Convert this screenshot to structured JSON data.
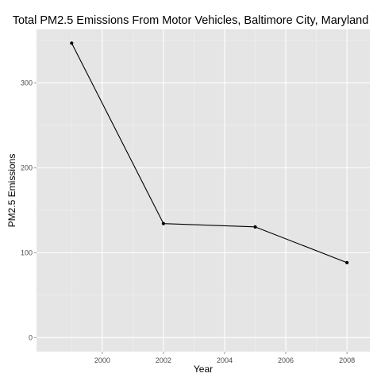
{
  "chart_data": {
    "type": "line",
    "title": "Total PM2.5 Emissions From Motor Vehicles, Baltimore City, Maryland",
    "xlabel": "Year",
    "ylabel": "PM2.5 Emissions",
    "x": [
      1999,
      2002,
      2005,
      2008
    ],
    "series": [
      {
        "values": [
          346.8,
          134.3,
          130.4,
          88.3
        ]
      }
    ],
    "xlim": [
      1997.85,
      2008.75
    ],
    "ylim": [
      -16.5,
      363
    ],
    "xticks": [
      2000,
      2002,
      2004,
      2006,
      2008
    ],
    "yticks": [
      0,
      100,
      200,
      300
    ],
    "xtick_labels": [
      "2000",
      "2002",
      "2004",
      "2006",
      "2008"
    ],
    "ytick_labels": [
      "0",
      "100",
      "200",
      "300"
    ],
    "grid": true,
    "legend": "none",
    "colors": {
      "panel_background": "#e5e5e5",
      "grid_major": "#ffffff",
      "grid_minor": "#f2f2f2",
      "line": "#000000",
      "point": "#000000",
      "tick_label": "#4d4d4d"
    }
  }
}
